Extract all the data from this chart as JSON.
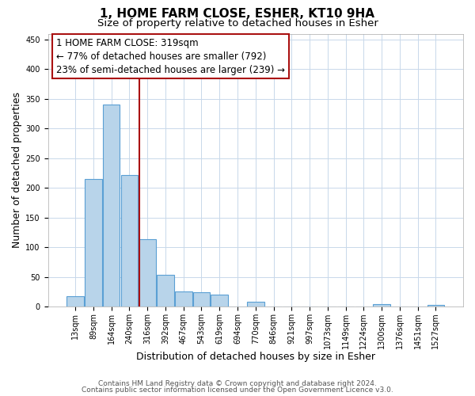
{
  "title": "1, HOME FARM CLOSE, ESHER, KT10 9HA",
  "subtitle": "Size of property relative to detached houses in Esher",
  "xlabel": "Distribution of detached houses by size in Esher",
  "ylabel": "Number of detached properties",
  "bar_labels": [
    "13sqm",
    "89sqm",
    "164sqm",
    "240sqm",
    "316sqm",
    "392sqm",
    "467sqm",
    "543sqm",
    "619sqm",
    "694sqm",
    "770sqm",
    "846sqm",
    "921sqm",
    "997sqm",
    "1073sqm",
    "1149sqm",
    "1224sqm",
    "1300sqm",
    "1376sqm",
    "1451sqm",
    "1527sqm"
  ],
  "bar_values": [
    18,
    215,
    340,
    222,
    113,
    53,
    26,
    24,
    20,
    0,
    8,
    0,
    0,
    0,
    0,
    0,
    0,
    4,
    0,
    0,
    3
  ],
  "bar_color": "#b8d4ea",
  "bar_edge_color": "#5a9fd4",
  "red_line_color": "#aa1111",
  "annotation_box_text": "1 HOME FARM CLOSE: 319sqm\n← 77% of detached houses are smaller (792)\n23% of semi-detached houses are larger (239) →",
  "ylim": [
    0,
    460
  ],
  "yticks": [
    0,
    50,
    100,
    150,
    200,
    250,
    300,
    350,
    400,
    450
  ],
  "footer_line1": "Contains HM Land Registry data © Crown copyright and database right 2024.",
  "footer_line2": "Contains public sector information licensed under the Open Government Licence v3.0.",
  "bg_color": "#ffffff",
  "grid_color": "#c8d8ea",
  "title_fontsize": 11,
  "subtitle_fontsize": 9.5,
  "axis_label_fontsize": 9,
  "tick_fontsize": 7,
  "annotation_fontsize": 8.5,
  "footer_fontsize": 6.5
}
